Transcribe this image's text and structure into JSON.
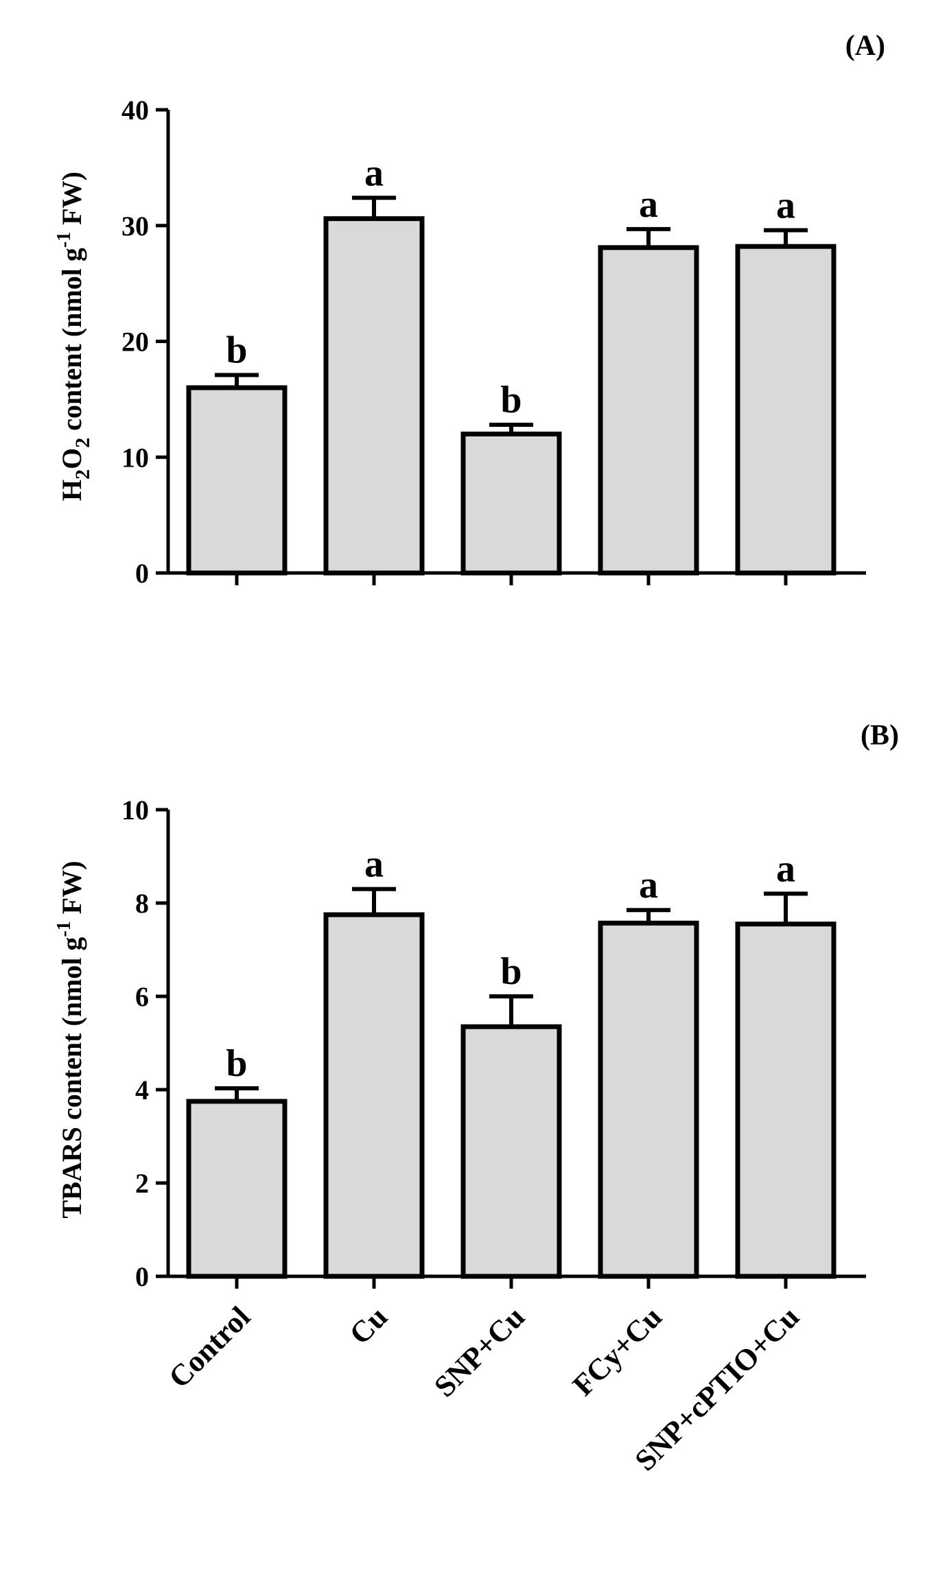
{
  "chart_data": [
    {
      "type": "bar",
      "panel_label": "(A)",
      "categories": [
        "Control",
        "Cu",
        "SNP+Cu",
        "FCy+Cu",
        "SNP+cPTIO+Cu"
      ],
      "values": [
        16.0,
        30.6,
        12.0,
        28.1,
        28.2
      ],
      "errors": [
        1.1,
        1.8,
        0.8,
        1.6,
        1.4
      ],
      "significance": [
        "b",
        "a",
        "b",
        "a",
        "a"
      ],
      "ylabel": "H2O2 content (nmol g-1 FW)",
      "ylabel_parts": {
        "p1": "H",
        "s1": "2",
        "p2": "O",
        "s2": "2",
        "p3": " content (nmol g",
        "sup": "-1",
        "p4": " FW)"
      },
      "ylim": [
        0,
        40
      ],
      "yticks": [
        "0",
        "10",
        "20",
        "30",
        "40"
      ]
    },
    {
      "type": "bar",
      "panel_label": "(B)",
      "categories": [
        "Control",
        "Cu",
        "SNP+Cu",
        "FCy+Cu",
        "SNP+cPTIO+Cu"
      ],
      "values": [
        3.75,
        7.75,
        5.35,
        7.57,
        7.55
      ],
      "errors": [
        0.28,
        0.55,
        0.65,
        0.28,
        0.65
      ],
      "significance": [
        "b",
        "a",
        "b",
        "a",
        "a"
      ],
      "ylabel": "TBARS content (nmol g-1 FW)",
      "ylabel_parts": {
        "p1": "TBARS content (nmol g",
        "sup": "-1",
        "p2": " FW)"
      },
      "ylim": [
        0,
        10
      ],
      "yticks": [
        "0",
        "2",
        "4",
        "6",
        "8",
        "10"
      ]
    }
  ]
}
